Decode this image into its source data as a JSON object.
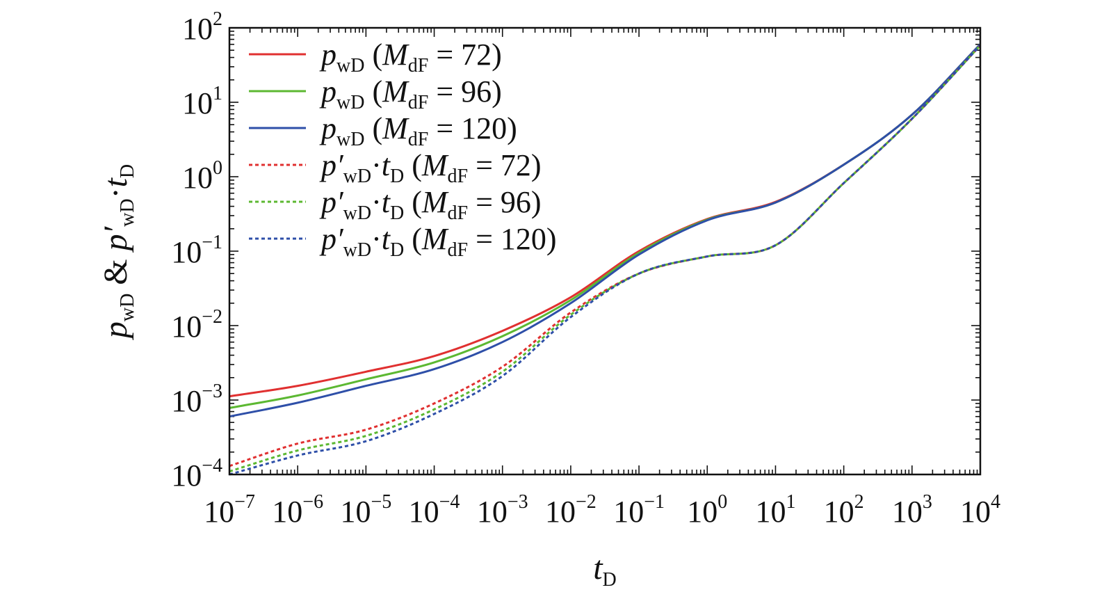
{
  "chart_data": {
    "type": "line",
    "title": "",
    "xscale": "log",
    "yscale": "log",
    "xlim": [
      1e-07,
      10000.0
    ],
    "ylim": [
      0.0001,
      100.0
    ],
    "xlabel": {
      "base": "t",
      "sub": "D"
    },
    "ylabel": {
      "parts": [
        {
          "text": "p",
          "italic": true
        },
        {
          "text": "wD",
          "sub": true
        },
        {
          "text": " & ",
          "italic": false
        },
        {
          "text": "p′",
          "italic": true
        },
        {
          "text": "wD",
          "sub": true
        },
        {
          "text": "·",
          "italic": false
        },
        {
          "text": "t",
          "italic": true
        },
        {
          "text": "D",
          "sub": true
        }
      ]
    },
    "x_tick_labels": [
      {
        "base": "10",
        "exp": "−7",
        "value": 1e-07
      },
      {
        "base": "10",
        "exp": "−6",
        "value": 1e-06
      },
      {
        "base": "10",
        "exp": "−5",
        "value": 1e-05
      },
      {
        "base": "10",
        "exp": "−4",
        "value": 0.0001
      },
      {
        "base": "10",
        "exp": "−3",
        "value": 0.001
      },
      {
        "base": "10",
        "exp": "−2",
        "value": 0.01
      },
      {
        "base": "10",
        "exp": "−1",
        "value": 0.1
      },
      {
        "base": "10",
        "exp": "0",
        "value": 1
      },
      {
        "base": "10",
        "exp": "1",
        "value": 10
      },
      {
        "base": "10",
        "exp": "2",
        "value": 100
      },
      {
        "base": "10",
        "exp": "3",
        "value": 1000
      },
      {
        "base": "10",
        "exp": "4",
        "value": 10000
      }
    ],
    "y_tick_labels": [
      {
        "base": "10",
        "exp": "−4",
        "value": 0.0001
      },
      {
        "base": "10",
        "exp": "−3",
        "value": 0.001
      },
      {
        "base": "10",
        "exp": "−2",
        "value": 0.01
      },
      {
        "base": "10",
        "exp": "−1",
        "value": 0.1
      },
      {
        "base": "10",
        "exp": "0",
        "value": 1
      },
      {
        "base": "10",
        "exp": "1",
        "value": 10
      },
      {
        "base": "10",
        "exp": "2",
        "value": 100
      }
    ],
    "grid": false,
    "legend_position": "top-left",
    "x": [
      1e-07,
      1e-06,
      1e-05,
      0.0001,
      0.001,
      0.01,
      0.1,
      1,
      10,
      100,
      1000,
      10000
    ],
    "series": [
      {
        "name": "p_wD (M_dF = 72)",
        "legend": {
          "main": "p",
          "mainSub": "wD",
          "prime": false,
          "var": "M",
          "varSub": "dF",
          "value": "72"
        },
        "color": "#e03030",
        "dash": "solid",
        "values": [
          0.00112,
          0.00155,
          0.0024,
          0.0039,
          0.0085,
          0.024,
          0.1,
          0.27,
          0.46,
          1.45,
          6.8,
          60
        ]
      },
      {
        "name": "p_wD (M_dF = 96)",
        "legend": {
          "main": "p",
          "mainSub": "wD",
          "prime": false,
          "var": "M",
          "varSub": "dF",
          "value": "96"
        },
        "color": "#5cb832",
        "dash": "solid",
        "values": [
          0.00078,
          0.00115,
          0.0019,
          0.0032,
          0.0072,
          0.022,
          0.095,
          0.265,
          0.45,
          1.45,
          6.8,
          60
        ]
      },
      {
        "name": "p_wD (M_dF = 120)",
        "legend": {
          "main": "p",
          "mainSub": "wD",
          "prime": false,
          "var": "M",
          "varSub": "dF",
          "value": "120"
        },
        "color": "#2e4fa8",
        "dash": "solid",
        "values": [
          0.0006,
          0.00092,
          0.00155,
          0.0026,
          0.006,
          0.02,
          0.09,
          0.26,
          0.45,
          1.45,
          6.8,
          60
        ]
      },
      {
        "name": "p′_wD·t_D (M_dF = 72)",
        "legend": {
          "main": "p′",
          "mainSub": "wD",
          "prime": true,
          "var": "M",
          "varSub": "dF",
          "value": "72"
        },
        "color": "#e03030",
        "dash": "dotted",
        "values": [
          0.00013,
          0.00026,
          0.0004,
          0.0009,
          0.0028,
          0.015,
          0.05,
          0.085,
          0.12,
          0.82,
          6.0,
          58
        ]
      },
      {
        "name": "p′_wD·t_D (M_dF = 96)",
        "legend": {
          "main": "p′",
          "mainSub": "wD",
          "prime": true,
          "var": "M",
          "varSub": "dF",
          "value": "96"
        },
        "color": "#5cb832",
        "dash": "dotted",
        "values": [
          0.00011,
          0.00021,
          0.00033,
          0.00075,
          0.0024,
          0.014,
          0.05,
          0.085,
          0.12,
          0.82,
          6.0,
          58
        ]
      },
      {
        "name": "p′_wD·t_D (M_dF = 120)",
        "legend": {
          "main": "p′",
          "mainSub": "wD",
          "prime": true,
          "var": "M",
          "varSub": "dF",
          "value": "120"
        },
        "color": "#2e4fa8",
        "dash": "dotted",
        "values": [
          0.0001,
          0.00018,
          0.00028,
          0.00065,
          0.0021,
          0.013,
          0.05,
          0.085,
          0.12,
          0.82,
          6.0,
          58
        ]
      }
    ]
  }
}
